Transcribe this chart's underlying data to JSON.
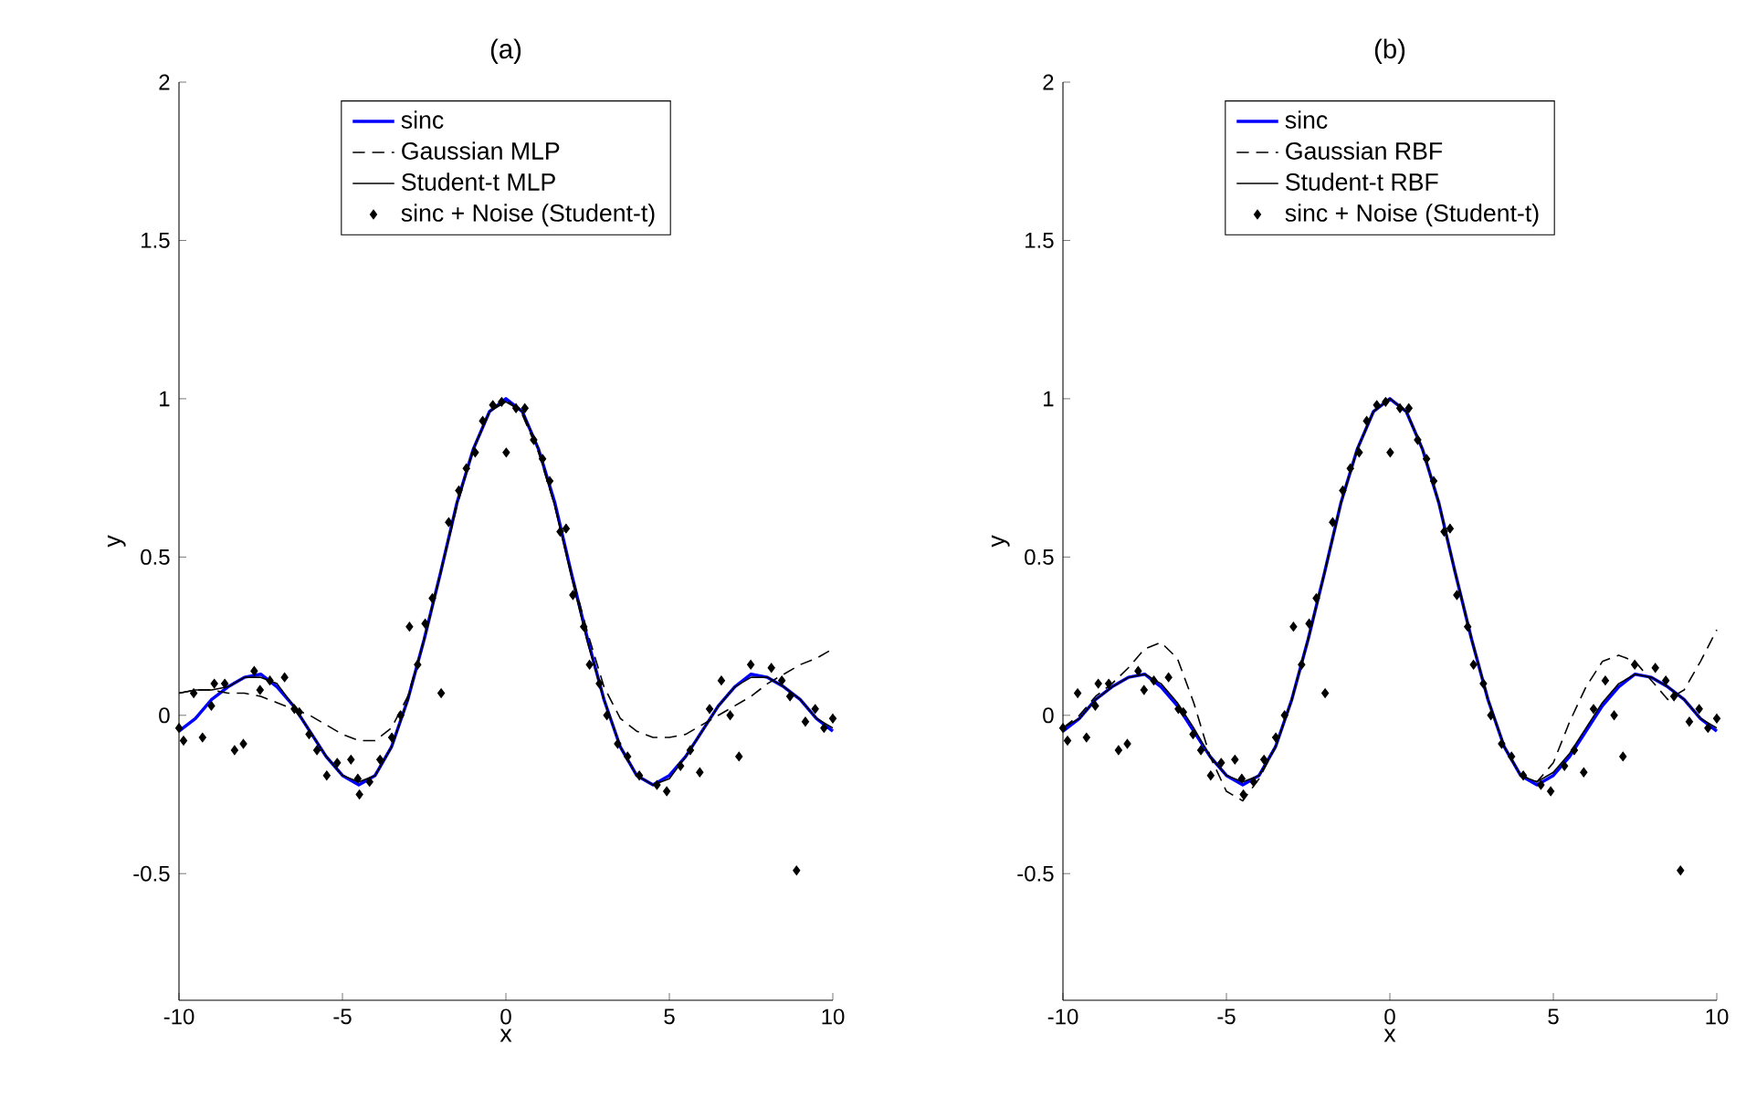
{
  "chart_data": [
    {
      "type": "line",
      "title": "(a)",
      "xlabel": "x",
      "ylabel": "y",
      "xlim": [
        -10,
        10
      ],
      "ylim": [
        -0.9,
        2
      ],
      "xticks": [
        -10,
        -5,
        0,
        5,
        10
      ],
      "yticks": [
        -0.5,
        0,
        0.5,
        1,
        1.5,
        2
      ],
      "legend": "top",
      "series": [
        {
          "name": "sinc",
          "color": "#0000ff",
          "line_style": "solid",
          "x": [
            -10,
            -9.5,
            -9,
            -8.5,
            -8,
            -7.5,
            -7,
            -6.5,
            -6,
            -5.5,
            -5,
            -4.5,
            -4,
            -3.5,
            -3,
            -2.5,
            -2,
            -1.5,
            -1,
            -0.5,
            0,
            0.5,
            1,
            1.5,
            2,
            2.5,
            3,
            3.5,
            4,
            4.5,
            5,
            5.5,
            6,
            6.5,
            7,
            7.5,
            8,
            8.5,
            9,
            9.5,
            10
          ],
          "values": [
            -0.05,
            -0.01,
            0.05,
            0.09,
            0.12,
            0.13,
            0.09,
            0.03,
            -0.05,
            -0.13,
            -0.19,
            -0.22,
            -0.19,
            -0.1,
            0.05,
            0.24,
            0.45,
            0.67,
            0.84,
            0.96,
            1,
            0.96,
            0.84,
            0.67,
            0.45,
            0.24,
            0.05,
            -0.1,
            -0.19,
            -0.22,
            -0.19,
            -0.13,
            -0.05,
            0.03,
            0.09,
            0.13,
            0.12,
            0.09,
            0.05,
            -0.01,
            -0.05
          ]
        },
        {
          "name": "Gaussian MLP",
          "color": "#000000",
          "line_style": "dashed",
          "x": [
            -10,
            -9.5,
            -9,
            -8.5,
            -8,
            -7.5,
            -7,
            -6.5,
            -6,
            -5.5,
            -5,
            -4.5,
            -4,
            -3.5,
            -3,
            -2.5,
            -2,
            -1.5,
            -1,
            -0.5,
            0,
            0.5,
            1,
            1.5,
            2,
            2.5,
            3,
            3.5,
            4,
            4.5,
            5,
            5.5,
            6,
            6.5,
            7,
            7.5,
            8,
            8.5,
            9,
            9.5,
            10
          ],
          "values": [
            0.07,
            0.08,
            0.08,
            0.07,
            0.07,
            0.06,
            0.04,
            0.02,
            0.0,
            -0.03,
            -0.06,
            -0.08,
            -0.08,
            -0.04,
            0.06,
            0.24,
            0.45,
            0.66,
            0.84,
            0.96,
            1,
            0.95,
            0.83,
            0.66,
            0.45,
            0.26,
            0.09,
            -0.01,
            -0.05,
            -0.07,
            -0.07,
            -0.06,
            -0.03,
            0.0,
            0.03,
            0.06,
            0.1,
            0.13,
            0.16,
            0.18,
            0.21
          ]
        },
        {
          "name": "Student-t MLP",
          "color": "#000000",
          "line_style": "solid",
          "x": [
            -10,
            -9.5,
            -9,
            -8.5,
            -8,
            -7.5,
            -7,
            -6.5,
            -6,
            -5.5,
            -5,
            -4.5,
            -4,
            -3.5,
            -3,
            -2.5,
            -2,
            -1.5,
            -1,
            -0.5,
            0,
            0.5,
            1,
            1.5,
            2,
            2.5,
            3,
            3.5,
            4,
            4.5,
            5,
            5.5,
            6,
            6.5,
            7,
            7.5,
            8,
            8.5,
            9,
            9.5,
            10
          ],
          "values": [
            0.07,
            0.08,
            0.08,
            0.09,
            0.12,
            0.12,
            0.1,
            0.03,
            -0.05,
            -0.13,
            -0.19,
            -0.21,
            -0.19,
            -0.1,
            0.05,
            0.24,
            0.45,
            0.67,
            0.84,
            0.96,
            0.99,
            0.96,
            0.84,
            0.66,
            0.44,
            0.23,
            0.05,
            -0.1,
            -0.19,
            -0.22,
            -0.2,
            -0.13,
            -0.05,
            0.03,
            0.09,
            0.12,
            0.12,
            0.09,
            0.05,
            -0.01,
            -0.04
          ]
        },
        {
          "name": "sinc + Noise (Student-t)",
          "color": "#000000",
          "type": "scatter",
          "marker": "diamond",
          "x": [
            -10,
            -9.86,
            -9.55,
            -9.28,
            -9.01,
            -8.92,
            -8.6,
            -8.3,
            -8.03,
            -7.7,
            -7.52,
            -7.22,
            -6.77,
            -6.47,
            -6.32,
            -6.02,
            -5.78,
            -5.48,
            -5.16,
            -4.74,
            -4.53,
            -4.48,
            -4.17,
            -3.85,
            -3.49,
            -3.22,
            -2.95,
            -2.7,
            -2.47,
            -2.25,
            -1.98,
            -1.75,
            -1.44,
            -1.21,
            -0.94,
            -0.71,
            -0.4,
            -0.13,
            0.01,
            0.31,
            0.58,
            0.85,
            1.12,
            1.34,
            1.66,
            1.84,
            2.05,
            2.38,
            2.56,
            2.86,
            3.09,
            3.42,
            3.72,
            4.08,
            4.62,
            4.92,
            5.34,
            5.64,
            5.93,
            6.23,
            6.59,
            6.86,
            7.13,
            7.49,
            8.12,
            8.44,
            8.69,
            8.89,
            9.16,
            9.46,
            9.73,
            10
          ],
          "values": [
            -0.04,
            -0.08,
            0.07,
            -0.07,
            0.03,
            0.1,
            0.1,
            -0.11,
            -0.09,
            0.14,
            0.08,
            0.11,
            0.12,
            0.02,
            0.01,
            -0.06,
            -0.11,
            -0.19,
            -0.15,
            -0.14,
            -0.2,
            -0.25,
            -0.21,
            -0.14,
            -0.07,
            0.0,
            0.28,
            0.16,
            0.29,
            0.37,
            0.07,
            0.61,
            0.71,
            0.78,
            0.83,
            0.93,
            0.98,
            0.99,
            0.83,
            0.97,
            0.97,
            0.87,
            0.81,
            0.74,
            0.58,
            0.59,
            0.38,
            0.28,
            0.16,
            0.1,
            0.0,
            -0.09,
            -0.13,
            -0.19,
            -0.22,
            -0.24,
            -0.16,
            -0.11,
            -0.18,
            0.02,
            0.11,
            0.0,
            -0.13,
            0.16,
            0.15,
            0.11,
            0.06,
            -0.49,
            -0.02,
            0.02,
            -0.04,
            -0.01
          ]
        }
      ]
    },
    {
      "type": "line",
      "title": "(b)",
      "xlabel": "x",
      "ylabel": "y",
      "xlim": [
        -10,
        10
      ],
      "ylim": [
        -0.9,
        2
      ],
      "xticks": [
        -10,
        -5,
        0,
        5,
        10
      ],
      "yticks": [
        -0.5,
        0,
        0.5,
        1,
        1.5,
        2
      ],
      "legend": "top",
      "series": [
        {
          "name": "sinc",
          "color": "#0000ff",
          "line_style": "solid",
          "x": [
            -10,
            -9.5,
            -9,
            -8.5,
            -8,
            -7.5,
            -7,
            -6.5,
            -6,
            -5.5,
            -5,
            -4.5,
            -4,
            -3.5,
            -3,
            -2.5,
            -2,
            -1.5,
            -1,
            -0.5,
            0,
            0.5,
            1,
            1.5,
            2,
            2.5,
            3,
            3.5,
            4,
            4.5,
            5,
            5.5,
            6,
            6.5,
            7,
            7.5,
            8,
            8.5,
            9,
            9.5,
            10
          ],
          "values": [
            -0.05,
            -0.01,
            0.05,
            0.09,
            0.12,
            0.13,
            0.09,
            0.03,
            -0.05,
            -0.13,
            -0.19,
            -0.22,
            -0.19,
            -0.1,
            0.05,
            0.24,
            0.45,
            0.67,
            0.84,
            0.96,
            1,
            0.96,
            0.84,
            0.67,
            0.45,
            0.24,
            0.05,
            -0.1,
            -0.19,
            -0.22,
            -0.19,
            -0.13,
            -0.05,
            0.03,
            0.09,
            0.13,
            0.12,
            0.09,
            0.05,
            -0.01,
            -0.05
          ]
        },
        {
          "name": "Gaussian RBF",
          "color": "#000000",
          "line_style": "dashed",
          "x": [
            -10,
            -9.5,
            -9,
            -8.5,
            -8,
            -7.5,
            -7,
            -6.5,
            -6,
            -5.5,
            -5,
            -4.5,
            -4,
            -3.5,
            -3,
            -2.5,
            -2,
            -1.5,
            -1,
            -0.5,
            0,
            0.5,
            1,
            1.5,
            2,
            2.5,
            3,
            3.5,
            4,
            4.5,
            5,
            5.5,
            6,
            6.5,
            7,
            7.5,
            8,
            8.5,
            9,
            9.5,
            10
          ],
          "values": [
            -0.04,
            0.0,
            0.06,
            0.1,
            0.15,
            0.21,
            0.23,
            0.18,
            0.04,
            -0.13,
            -0.24,
            -0.27,
            -0.2,
            -0.1,
            0.05,
            0.24,
            0.45,
            0.67,
            0.84,
            0.96,
            1,
            0.96,
            0.84,
            0.67,
            0.45,
            0.24,
            0.05,
            -0.1,
            -0.19,
            -0.21,
            -0.15,
            -0.02,
            0.09,
            0.17,
            0.19,
            0.17,
            0.11,
            0.05,
            0.08,
            0.17,
            0.27
          ]
        },
        {
          "name": "Student-t RBF",
          "color": "#000000",
          "line_style": "solid",
          "x": [
            -10,
            -9.5,
            -9,
            -8.5,
            -8,
            -7.5,
            -7,
            -6.5,
            -6,
            -5.5,
            -5,
            -4.5,
            -4,
            -3.5,
            -3,
            -2.5,
            -2,
            -1.5,
            -1,
            -0.5,
            0,
            0.5,
            1,
            1.5,
            2,
            2.5,
            3,
            3.5,
            4,
            4.5,
            5,
            5.5,
            6,
            6.5,
            7,
            7.5,
            8,
            8.5,
            9,
            9.5,
            10
          ],
          "values": [
            -0.04,
            -0.01,
            0.05,
            0.09,
            0.12,
            0.13,
            0.1,
            0.04,
            -0.04,
            -0.13,
            -0.19,
            -0.21,
            -0.19,
            -0.1,
            0.05,
            0.24,
            0.45,
            0.67,
            0.84,
            0.96,
            1,
            0.96,
            0.84,
            0.67,
            0.45,
            0.24,
            0.05,
            -0.1,
            -0.19,
            -0.21,
            -0.18,
            -0.12,
            -0.04,
            0.04,
            0.1,
            0.13,
            0.12,
            0.09,
            0.05,
            -0.01,
            -0.04
          ]
        },
        {
          "name": "sinc + Noise (Student-t)",
          "color": "#000000",
          "type": "scatter",
          "marker": "diamond",
          "x": [
            -10,
            -9.86,
            -9.55,
            -9.28,
            -9.01,
            -8.92,
            -8.6,
            -8.3,
            -8.03,
            -7.7,
            -7.52,
            -7.22,
            -6.77,
            -6.47,
            -6.32,
            -6.02,
            -5.78,
            -5.48,
            -5.16,
            -4.74,
            -4.53,
            -4.48,
            -4.17,
            -3.85,
            -3.49,
            -3.22,
            -2.95,
            -2.7,
            -2.47,
            -2.25,
            -1.98,
            -1.75,
            -1.44,
            -1.21,
            -0.94,
            -0.71,
            -0.4,
            -0.13,
            0.01,
            0.31,
            0.58,
            0.85,
            1.12,
            1.34,
            1.66,
            1.84,
            2.05,
            2.38,
            2.56,
            2.86,
            3.09,
            3.42,
            3.72,
            4.08,
            4.62,
            4.92,
            5.34,
            5.64,
            5.93,
            6.23,
            6.59,
            6.86,
            7.13,
            7.49,
            8.12,
            8.44,
            8.69,
            8.89,
            9.16,
            9.46,
            9.73,
            10
          ],
          "values": [
            -0.04,
            -0.08,
            0.07,
            -0.07,
            0.03,
            0.1,
            0.1,
            -0.11,
            -0.09,
            0.14,
            0.08,
            0.11,
            0.12,
            0.02,
            0.01,
            -0.06,
            -0.11,
            -0.19,
            -0.15,
            -0.14,
            -0.2,
            -0.25,
            -0.21,
            -0.14,
            -0.07,
            0.0,
            0.28,
            0.16,
            0.29,
            0.37,
            0.07,
            0.61,
            0.71,
            0.78,
            0.83,
            0.93,
            0.98,
            0.99,
            0.83,
            0.97,
            0.97,
            0.87,
            0.81,
            0.74,
            0.58,
            0.59,
            0.38,
            0.28,
            0.16,
            0.1,
            0.0,
            -0.09,
            -0.13,
            -0.19,
            -0.22,
            -0.24,
            -0.16,
            -0.11,
            -0.18,
            0.02,
            0.11,
            0.0,
            -0.13,
            0.16,
            0.15,
            0.11,
            0.06,
            -0.49,
            -0.02,
            0.02,
            -0.04,
            -0.01
          ]
        }
      ]
    }
  ]
}
